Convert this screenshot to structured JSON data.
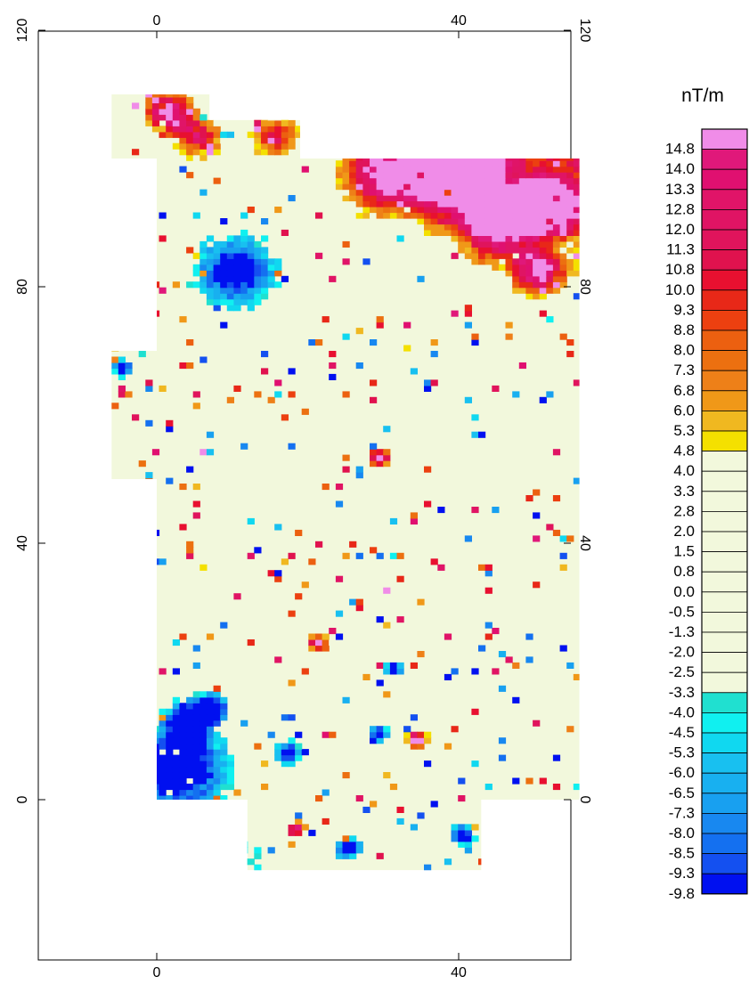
{
  "chart_data": {
    "type": "heatmap",
    "title": "",
    "xlabel": "",
    "ylabel": "",
    "x_ticks": [
      0,
      40
    ],
    "y_ticks": [
      0,
      40,
      80,
      120
    ],
    "xlim": [
      -17,
      55
    ],
    "ylim": [
      -25,
      122
    ],
    "colorbar": {
      "unit": "nT/m",
      "labels": [
        "14.8",
        "14.0",
        "13.3",
        "12.8",
        "12.0",
        "11.3",
        "10.8",
        "10.0",
        "9.3",
        "8.8",
        "8.0",
        "7.3",
        "6.8",
        "6.0",
        "5.3",
        "4.8",
        "4.0",
        "3.3",
        "2.8",
        "2.0",
        "1.5",
        "0.8",
        "0.0",
        "-0.5",
        "-1.3",
        "-2.0",
        "-2.5",
        "-3.3",
        "-4.0",
        "-4.5",
        "-5.3",
        "-6.0",
        "-6.5",
        "-7.3",
        "-8.0",
        "-8.5",
        "-9.3",
        "-9.8"
      ],
      "colors": [
        "#f08ce8",
        "#e0187a",
        "#e01070",
        "#e01468",
        "#e01464",
        "#e0145c",
        "#e0124e",
        "#e81030",
        "#e82818",
        "#ec4010",
        "#ec6010",
        "#ec7010",
        "#ee8018",
        "#f09818",
        "#f0b820",
        "#f4e000",
        "#f2f8dc",
        "#f2f8dc",
        "#f2f8dc",
        "#f2f8dc",
        "#f2f8dc",
        "#f2f8dc",
        "#f2f8dc",
        "#f2f8dc",
        "#f2f8dc",
        "#f2f8dc",
        "#f2f8dc",
        "#f2f8dc",
        "#20e0d0",
        "#10f0f0",
        "#10d8f0",
        "#18c0f0",
        "#18b0f0",
        "#18a0f0",
        "#1888f0",
        "#1470f0",
        "#1450f0",
        "#0010f0"
      ]
    },
    "survey_region": [
      [
        [
          -6,
          110
        ],
        [
          7,
          110
        ],
        [
          7,
          106
        ],
        [
          19,
          106
        ],
        [
          19,
          100
        ],
        [
          -6,
          100
        ]
      ],
      [
        [
          0,
          98
        ],
        [
          0,
          70
        ],
        [
          -6,
          70
        ],
        [
          -6,
          50
        ],
        [
          0,
          50
        ],
        [
          0,
          0
        ],
        [
          12,
          0
        ],
        [
          12,
          -11
        ],
        [
          43,
          -11
        ],
        [
          43,
          0
        ],
        [
          56,
          0
        ],
        [
          56,
          100
        ],
        [
          0,
          100
        ]
      ]
    ],
    "anomalies": [
      {
        "x": 10,
        "y": 82,
        "r": 5,
        "v": -9.8
      },
      {
        "x": 2.5,
        "y": 5,
        "r": 5,
        "v": -9.8
      },
      {
        "x": 4,
        "y": 12,
        "r": 3,
        "v": -9.3
      },
      {
        "x": 51,
        "y": 92,
        "r": 4,
        "v": 14.8
      },
      {
        "x": 40,
        "y": 96,
        "r": 6,
        "v": 13.3
      },
      {
        "x": 30,
        "y": 97,
        "r": 5,
        "v": 11.3
      },
      {
        "x": 45,
        "y": 88,
        "r": 4,
        "v": 10.0
      },
      {
        "x": 50,
        "y": 82,
        "r": 3,
        "v": 10.8
      },
      {
        "x": 1,
        "y": 107,
        "r": 3,
        "v": 13.3
      },
      {
        "x": 5,
        "y": 103,
        "r": 3,
        "v": 10.0
      },
      {
        "x": 15,
        "y": 103,
        "r": 3,
        "v": 9.3
      },
      {
        "x": 21,
        "y": 24,
        "r": 1.5,
        "v": 11.3
      },
      {
        "x": 29,
        "y": 53,
        "r": 1.2,
        "v": 14.8
      },
      {
        "x": 34,
        "y": 9,
        "r": 1.2,
        "v": 14.8
      },
      {
        "x": 18,
        "y": -5,
        "r": 1.2,
        "v": 14.8
      },
      {
        "x": -5,
        "y": 67,
        "r": 1.2,
        "v": -9.8
      },
      {
        "x": 7,
        "y": 14,
        "r": 2,
        "v": -9.8
      },
      {
        "x": 17,
        "y": 7,
        "r": 1.5,
        "v": -9.3
      },
      {
        "x": 40,
        "y": -6,
        "r": 1.5,
        "v": -9.8
      },
      {
        "x": 25,
        "y": -8,
        "r": 1.5,
        "v": -9.8
      },
      {
        "x": 31,
        "y": 20,
        "r": 1.2,
        "v": -9.3
      },
      {
        "x": 29,
        "y": 10,
        "r": 1.2,
        "v": -9.8
      }
    ],
    "value_range": [
      -9.8,
      14.8
    ]
  }
}
